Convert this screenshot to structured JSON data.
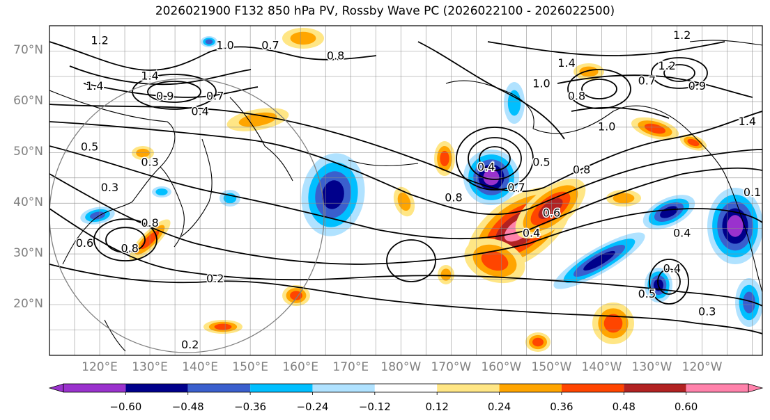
{
  "title": "2026021900 F132 850 hPa PV, Rossby Wave PC (2026022100 - 2026022500)",
  "map": {
    "projection": "equirectangular",
    "lon_range": [
      110,
      252
    ],
    "lat_range": [
      10,
      75
    ],
    "lat_labels": [
      "70°N",
      "60°N",
      "50°N",
      "40°N",
      "30°N",
      "20°N"
    ],
    "lat_values": [
      70,
      60,
      50,
      40,
      30,
      20
    ],
    "lon_labels": [
      "120°E",
      "130°E",
      "140°E",
      "150°E",
      "160°E",
      "170°E",
      "180°W",
      "170°W",
      "160°W",
      "150°W",
      "140°W",
      "130°W",
      "120°W"
    ],
    "lon_values": [
      120,
      130,
      140,
      150,
      160,
      170,
      180,
      190,
      200,
      210,
      220,
      230,
      240
    ],
    "contour_labels": [
      {
        "text": "1.2",
        "lon": 236,
        "lat": 73
      },
      {
        "text": "1.4",
        "lon": 213,
        "lat": 67.5
      },
      {
        "text": "1.2",
        "lon": 233,
        "lat": 67
      },
      {
        "text": "0.7",
        "lon": 229,
        "lat": 64
      },
      {
        "text": "0.9",
        "lon": 239,
        "lat": 63
      },
      {
        "text": "1.0",
        "lon": 208,
        "lat": 63.5
      },
      {
        "text": "0.8",
        "lon": 215,
        "lat": 61
      },
      {
        "text": "1.0",
        "lon": 221,
        "lat": 55
      },
      {
        "text": "0.8",
        "lon": 216,
        "lat": 46.5
      },
      {
        "text": "1.4",
        "lon": 249,
        "lat": 56
      },
      {
        "text": "0.1",
        "lon": 250,
        "lat": 42
      },
      {
        "text": "0.4",
        "lon": 197,
        "lat": 47
      },
      {
        "text": "0.5",
        "lon": 208,
        "lat": 48
      },
      {
        "text": "0.7",
        "lon": 203,
        "lat": 43
      },
      {
        "text": "0.8",
        "lon": 190.5,
        "lat": 41
      },
      {
        "text": "0.6",
        "lon": 210,
        "lat": 38
      },
      {
        "text": "0.4",
        "lon": 206,
        "lat": 34
      },
      {
        "text": "0.4",
        "lon": 236,
        "lat": 34
      },
      {
        "text": "0.4",
        "lon": 234,
        "lat": 27
      },
      {
        "text": "0.5",
        "lon": 229,
        "lat": 22
      },
      {
        "text": "0.3",
        "lon": 241,
        "lat": 18.5
      },
      {
        "text": "1.2",
        "lon": 120,
        "lat": 72
      },
      {
        "text": "1.0",
        "lon": 145,
        "lat": 71
      },
      {
        "text": "0.7",
        "lon": 154,
        "lat": 71
      },
      {
        "text": "0.8",
        "lon": 167,
        "lat": 69
      },
      {
        "text": "1.4",
        "lon": 130,
        "lat": 65
      },
      {
        "text": "1.4",
        "lon": 119,
        "lat": 63
      },
      {
        "text": "0.9",
        "lon": 133,
        "lat": 61
      },
      {
        "text": "0.7",
        "lon": 143,
        "lat": 61
      },
      {
        "text": "0.4",
        "lon": 140,
        "lat": 58
      },
      {
        "text": "0.5",
        "lon": 118,
        "lat": 51
      },
      {
        "text": "0.3",
        "lon": 130,
        "lat": 48
      },
      {
        "text": "0.3",
        "lon": 122,
        "lat": 43
      },
      {
        "text": "0.8",
        "lon": 130,
        "lat": 36
      },
      {
        "text": "0.8",
        "lon": 126,
        "lat": 31
      },
      {
        "text": "0.6",
        "lon": 117,
        "lat": 32
      },
      {
        "text": "0.2",
        "lon": 143,
        "lat": 25
      },
      {
        "text": "0.2",
        "lon": 138,
        "lat": 12
      }
    ]
  },
  "colorbar": {
    "tick_labels": [
      "−0.60",
      "−0.48",
      "−0.36",
      "−0.24",
      "−0.12",
      "0.12",
      "0.24",
      "0.36",
      "0.48",
      "0.60"
    ],
    "levels": [
      -0.6,
      -0.48,
      -0.36,
      -0.24,
      -0.12,
      0.12,
      0.24,
      0.36,
      0.48,
      0.6
    ],
    "colors": [
      "#9a32cd",
      "#00008b",
      "#3a5fcd",
      "#00bfff",
      "#b0e2ff",
      "#ffffff",
      "#ffe685",
      "#ffa500",
      "#ff4500",
      "#b22222",
      "#ff82ab"
    ]
  }
}
